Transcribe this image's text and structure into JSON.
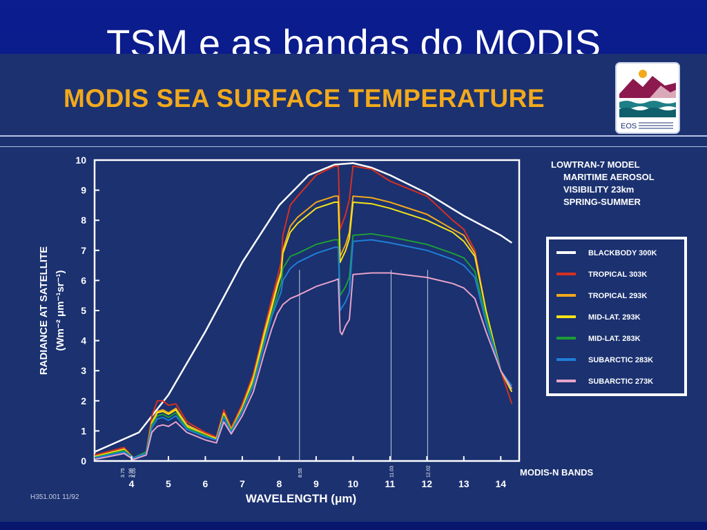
{
  "slide": {
    "title": "TSM e as bandas do MODIS",
    "heading": "MODIS SEA SURFACE TEMPERATURE",
    "logo_label": "EOS",
    "footer_code": "H351.001  11/92"
  },
  "chart_data": {
    "type": "line",
    "xlabel": "WAVELENGTH (μm)",
    "ylabel_line1": "RADIANCE AT SATELLITE",
    "ylabel_line2": "(Wm⁻² μm⁻¹sr⁻¹)",
    "xlim": [
      3.0,
      14.5
    ],
    "ylim": [
      0,
      10
    ],
    "x_ticks": [
      "4",
      "5",
      "6",
      "7",
      "8",
      "9",
      "10",
      "11",
      "12",
      "13",
      "14"
    ],
    "y_ticks": [
      "0",
      "1",
      "2",
      "3",
      "4",
      "5",
      "6",
      "7",
      "8",
      "9",
      "10"
    ],
    "annotations": [
      "LOWTRAN-7 MODEL",
      "MARITIME AEROSOL",
      "VISIBILITY 23km",
      "SPRING-SUMMER"
    ],
    "bands_label": "MODIS-N BANDS",
    "bands": [
      {
        "label": "3.75",
        "x": 3.75,
        "line": false
      },
      {
        "label": "3.96",
        "x": 3.96,
        "line": false
      },
      {
        "label": "4.05",
        "x": 4.05,
        "line": false
      },
      {
        "label": "8.55",
        "x": 8.55,
        "line": true
      },
      {
        "label": "11.03",
        "x": 11.03,
        "line": true
      },
      {
        "label": "12.02",
        "x": 12.02,
        "line": true
      }
    ],
    "series": [
      {
        "name": "BLACKBODY  300K",
        "color": "#ffffff",
        "width": 2.5,
        "points": [
          [
            3.0,
            0.3
          ],
          [
            4.2,
            0.95
          ],
          [
            5.0,
            2.2
          ],
          [
            6.0,
            4.3
          ],
          [
            7.0,
            6.6
          ],
          [
            8.0,
            8.5
          ],
          [
            8.8,
            9.5
          ],
          [
            9.5,
            9.85
          ],
          [
            10.0,
            9.9
          ],
          [
            10.5,
            9.75
          ],
          [
            11.0,
            9.5
          ],
          [
            12.0,
            8.9
          ],
          [
            13.0,
            8.15
          ],
          [
            14.0,
            7.5
          ],
          [
            14.3,
            7.25
          ]
        ]
      },
      {
        "name": "TROPICAL  303K",
        "color": "#d63020",
        "width": 2,
        "points": [
          [
            3.0,
            0.2
          ],
          [
            3.8,
            0.45
          ],
          [
            4.05,
            0.1
          ],
          [
            4.4,
            0.3
          ],
          [
            4.55,
            1.5
          ],
          [
            4.7,
            2.0
          ],
          [
            4.85,
            2.0
          ],
          [
            5.0,
            1.85
          ],
          [
            5.2,
            1.9
          ],
          [
            5.5,
            1.3
          ],
          [
            6.0,
            0.95
          ],
          [
            6.3,
            0.8
          ],
          [
            6.5,
            1.7
          ],
          [
            6.7,
            1.1
          ],
          [
            7.0,
            1.9
          ],
          [
            7.3,
            2.9
          ],
          [
            7.6,
            4.4
          ],
          [
            7.8,
            5.4
          ],
          [
            7.95,
            6.1
          ],
          [
            8.05,
            6.6
          ],
          [
            8.1,
            7.5
          ],
          [
            8.3,
            8.5
          ],
          [
            8.5,
            8.8
          ],
          [
            9.0,
            9.5
          ],
          [
            9.5,
            9.8
          ],
          [
            9.6,
            9.8
          ],
          [
            9.65,
            7.7
          ],
          [
            9.8,
            8.2
          ],
          [
            9.9,
            8.7
          ],
          [
            10.0,
            9.8
          ],
          [
            10.5,
            9.7
          ],
          [
            11.0,
            9.3
          ],
          [
            12.0,
            8.8
          ],
          [
            12.7,
            8.0
          ],
          [
            13.0,
            7.7
          ],
          [
            13.3,
            7.0
          ],
          [
            13.6,
            5.0
          ],
          [
            14.0,
            3.0
          ],
          [
            14.3,
            1.9
          ]
        ]
      },
      {
        "name": "TROPICAL  293K",
        "color": "#f2a91c",
        "width": 2,
        "points": [
          [
            3.0,
            0.15
          ],
          [
            3.8,
            0.4
          ],
          [
            4.05,
            0.1
          ],
          [
            4.4,
            0.3
          ],
          [
            4.55,
            1.3
          ],
          [
            4.7,
            1.65
          ],
          [
            4.85,
            1.7
          ],
          [
            5.0,
            1.6
          ],
          [
            5.2,
            1.75
          ],
          [
            5.5,
            1.2
          ],
          [
            6.0,
            0.9
          ],
          [
            6.3,
            0.75
          ],
          [
            6.5,
            1.6
          ],
          [
            6.7,
            1.05
          ],
          [
            7.0,
            1.8
          ],
          [
            7.3,
            2.8
          ],
          [
            7.6,
            4.3
          ],
          [
            7.8,
            5.2
          ],
          [
            7.95,
            5.9
          ],
          [
            8.05,
            6.3
          ],
          [
            8.1,
            7.0
          ],
          [
            8.3,
            7.8
          ],
          [
            8.5,
            8.1
          ],
          [
            9.0,
            8.6
          ],
          [
            9.5,
            8.8
          ],
          [
            9.6,
            8.8
          ],
          [
            9.65,
            6.8
          ],
          [
            9.8,
            7.2
          ],
          [
            9.9,
            7.6
          ],
          [
            10.0,
            8.8
          ],
          [
            10.5,
            8.75
          ],
          [
            11.0,
            8.6
          ],
          [
            12.0,
            8.2
          ],
          [
            12.7,
            7.7
          ],
          [
            13.0,
            7.5
          ],
          [
            13.3,
            6.9
          ],
          [
            13.6,
            5.0
          ],
          [
            14.0,
            3.0
          ],
          [
            14.3,
            2.3
          ]
        ]
      },
      {
        "name": "MID-LAT.  293K",
        "color": "#f5e31a",
        "width": 2,
        "points": [
          [
            3.0,
            0.15
          ],
          [
            3.8,
            0.38
          ],
          [
            4.05,
            0.1
          ],
          [
            4.4,
            0.3
          ],
          [
            4.55,
            1.25
          ],
          [
            4.7,
            1.6
          ],
          [
            4.85,
            1.65
          ],
          [
            5.0,
            1.55
          ],
          [
            5.2,
            1.7
          ],
          [
            5.5,
            1.15
          ],
          [
            6.0,
            0.85
          ],
          [
            6.3,
            0.75
          ],
          [
            6.5,
            1.55
          ],
          [
            6.7,
            1.0
          ],
          [
            7.0,
            1.75
          ],
          [
            7.3,
            2.7
          ],
          [
            7.6,
            4.2
          ],
          [
            7.8,
            5.1
          ],
          [
            7.95,
            5.8
          ],
          [
            8.05,
            6.2
          ],
          [
            8.1,
            6.9
          ],
          [
            8.3,
            7.6
          ],
          [
            8.5,
            7.9
          ],
          [
            9.0,
            8.4
          ],
          [
            9.5,
            8.6
          ],
          [
            9.6,
            8.6
          ],
          [
            9.65,
            6.6
          ],
          [
            9.8,
            7.0
          ],
          [
            9.9,
            7.4
          ],
          [
            10.0,
            8.6
          ],
          [
            10.5,
            8.55
          ],
          [
            11.0,
            8.4
          ],
          [
            12.0,
            8.0
          ],
          [
            12.7,
            7.6
          ],
          [
            13.0,
            7.3
          ],
          [
            13.3,
            6.8
          ],
          [
            13.6,
            5.0
          ],
          [
            14.0,
            3.0
          ],
          [
            14.3,
            2.3
          ]
        ]
      },
      {
        "name": "MID-LAT.  283K",
        "color": "#1c9e36",
        "width": 2,
        "points": [
          [
            3.0,
            0.12
          ],
          [
            3.8,
            0.35
          ],
          [
            4.05,
            0.1
          ],
          [
            4.4,
            0.3
          ],
          [
            4.55,
            1.2
          ],
          [
            4.7,
            1.5
          ],
          [
            4.85,
            1.55
          ],
          [
            5.0,
            1.45
          ],
          [
            5.2,
            1.6
          ],
          [
            5.5,
            1.1
          ],
          [
            6.0,
            0.85
          ],
          [
            6.3,
            0.7
          ],
          [
            6.5,
            1.5
          ],
          [
            6.7,
            1.0
          ],
          [
            7.0,
            1.7
          ],
          [
            7.3,
            2.6
          ],
          [
            7.6,
            4.0
          ],
          [
            7.8,
            4.9
          ],
          [
            7.95,
            5.5
          ],
          [
            8.05,
            5.9
          ],
          [
            8.1,
            6.4
          ],
          [
            8.3,
            6.8
          ],
          [
            8.5,
            6.9
          ],
          [
            9.0,
            7.2
          ],
          [
            9.5,
            7.35
          ],
          [
            9.6,
            7.35
          ],
          [
            9.65,
            5.5
          ],
          [
            9.8,
            5.8
          ],
          [
            9.9,
            6.1
          ],
          [
            10.0,
            7.5
          ],
          [
            10.5,
            7.55
          ],
          [
            11.0,
            7.45
          ],
          [
            12.0,
            7.2
          ],
          [
            12.7,
            6.9
          ],
          [
            13.0,
            6.75
          ],
          [
            13.3,
            6.3
          ],
          [
            13.6,
            4.8
          ],
          [
            14.0,
            3.0
          ],
          [
            14.3,
            2.4
          ]
        ]
      },
      {
        "name": "SUBARCTIC  283K",
        "color": "#1f7fd8",
        "width": 2,
        "points": [
          [
            3.0,
            0.1
          ],
          [
            3.8,
            0.3
          ],
          [
            4.05,
            0.1
          ],
          [
            4.4,
            0.25
          ],
          [
            4.55,
            1.1
          ],
          [
            4.7,
            1.4
          ],
          [
            4.85,
            1.45
          ],
          [
            5.0,
            1.35
          ],
          [
            5.2,
            1.5
          ],
          [
            5.5,
            1.05
          ],
          [
            6.0,
            0.8
          ],
          [
            6.3,
            0.7
          ],
          [
            6.5,
            1.45
          ],
          [
            6.7,
            0.95
          ],
          [
            7.0,
            1.65
          ],
          [
            7.3,
            2.5
          ],
          [
            7.6,
            3.9
          ],
          [
            7.8,
            4.8
          ],
          [
            7.95,
            5.3
          ],
          [
            8.05,
            5.6
          ],
          [
            8.1,
            6.0
          ],
          [
            8.3,
            6.4
          ],
          [
            8.5,
            6.6
          ],
          [
            9.0,
            6.9
          ],
          [
            9.5,
            7.1
          ],
          [
            9.6,
            7.1
          ],
          [
            9.65,
            5.0
          ],
          [
            9.8,
            5.3
          ],
          [
            9.9,
            5.6
          ],
          [
            10.0,
            7.3
          ],
          [
            10.5,
            7.35
          ],
          [
            11.0,
            7.25
          ],
          [
            12.0,
            7.0
          ],
          [
            12.7,
            6.7
          ],
          [
            13.0,
            6.5
          ],
          [
            13.3,
            6.1
          ],
          [
            13.6,
            4.6
          ],
          [
            14.0,
            3.0
          ],
          [
            14.3,
            2.5
          ]
        ]
      },
      {
        "name": "SUBARCTIC  273K",
        "color": "#e9a3c9",
        "width": 2,
        "points": [
          [
            3.0,
            0.05
          ],
          [
            3.8,
            0.25
          ],
          [
            4.05,
            0.05
          ],
          [
            4.4,
            0.2
          ],
          [
            4.55,
            0.95
          ],
          [
            4.7,
            1.15
          ],
          [
            4.85,
            1.2
          ],
          [
            5.0,
            1.15
          ],
          [
            5.2,
            1.3
          ],
          [
            5.5,
            0.95
          ],
          [
            6.0,
            0.7
          ],
          [
            6.3,
            0.6
          ],
          [
            6.5,
            1.3
          ],
          [
            6.7,
            0.9
          ],
          [
            7.0,
            1.5
          ],
          [
            7.3,
            2.3
          ],
          [
            7.6,
            3.6
          ],
          [
            7.8,
            4.4
          ],
          [
            7.95,
            4.9
          ],
          [
            8.05,
            5.1
          ],
          [
            8.1,
            5.2
          ],
          [
            8.3,
            5.4
          ],
          [
            8.5,
            5.5
          ],
          [
            9.0,
            5.8
          ],
          [
            9.5,
            6.0
          ],
          [
            9.6,
            6.05
          ],
          [
            9.65,
            4.3
          ],
          [
            9.7,
            4.2
          ],
          [
            9.8,
            4.5
          ],
          [
            9.9,
            4.7
          ],
          [
            10.0,
            6.2
          ],
          [
            10.5,
            6.25
          ],
          [
            11.0,
            6.25
          ],
          [
            12.0,
            6.1
          ],
          [
            12.7,
            5.9
          ],
          [
            13.0,
            5.75
          ],
          [
            13.3,
            5.4
          ],
          [
            13.6,
            4.3
          ],
          [
            14.0,
            3.0
          ],
          [
            14.3,
            2.4
          ]
        ]
      }
    ]
  }
}
